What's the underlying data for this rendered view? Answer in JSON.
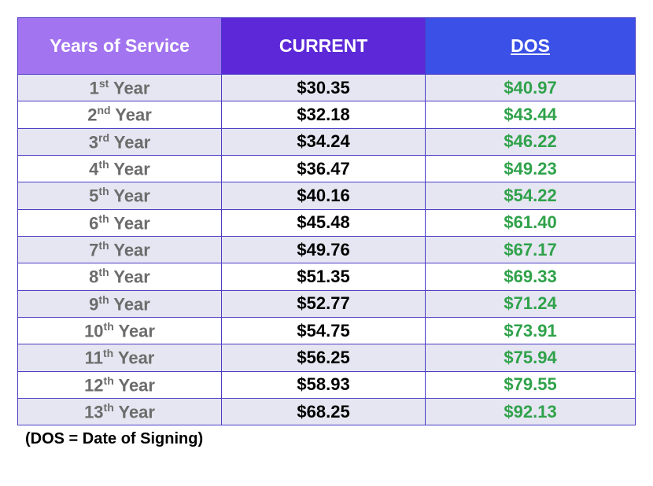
{
  "type": "table",
  "columns": {
    "years": {
      "label": "Years of Service",
      "header_bg": "#a374f0",
      "header_fg": "#ffffff",
      "cell_fg": "#6c6c6c"
    },
    "current": {
      "label": "CURRENT",
      "header_bg": "#5c28d8",
      "header_fg": "#ffffff",
      "cell_fg": "#000000"
    },
    "dos": {
      "label": "DOS",
      "header_bg": "#3b50e6",
      "header_fg": "#ffffff",
      "cell_fg": "#2fa24a",
      "underline": true
    }
  },
  "row_colors": {
    "odd": "#e6e6f2",
    "even": "#ffffff"
  },
  "border_color": "#4a3dc4",
  "header_fontsize": 23,
  "cell_fontsize": 22,
  "rows": [
    {
      "year_num": "1",
      "year_ord": "st",
      "year_suffix": " Year",
      "current": "$30.35",
      "dos": "$40.97"
    },
    {
      "year_num": "2",
      "year_ord": "nd",
      "year_suffix": " Year",
      "current": "$32.18",
      "dos": "$43.44"
    },
    {
      "year_num": "3",
      "year_ord": "rd",
      "year_suffix": " Year",
      "current": "$34.24",
      "dos": "$46.22"
    },
    {
      "year_num": "4",
      "year_ord": "th",
      "year_suffix": " Year",
      "current": "$36.47",
      "dos": "$49.23"
    },
    {
      "year_num": "5",
      "year_ord": "th",
      "year_suffix": " Year",
      "current": "$40.16",
      "dos": "$54.22"
    },
    {
      "year_num": "6",
      "year_ord": "th",
      "year_suffix": " Year",
      "current": "$45.48",
      "dos": "$61.40"
    },
    {
      "year_num": "7",
      "year_ord": "th",
      "year_suffix": " Year",
      "current": "$49.76",
      "dos": "$67.17"
    },
    {
      "year_num": "8",
      "year_ord": "th",
      "year_suffix": " Year",
      "current": "$51.35",
      "dos": "$69.33"
    },
    {
      "year_num": "9",
      "year_ord": "th",
      "year_suffix": " Year",
      "current": "$52.77",
      "dos": "$71.24"
    },
    {
      "year_num": "10",
      "year_ord": "th",
      "year_suffix": " Year",
      "current": "$54.75",
      "dos": "$73.91"
    },
    {
      "year_num": "11",
      "year_ord": "th",
      "year_suffix": " Year",
      "current": "$56.25",
      "dos": "$75.94"
    },
    {
      "year_num": "12",
      "year_ord": "th",
      "year_suffix": " Year",
      "current": "$58.93",
      "dos": "$79.55"
    },
    {
      "year_num": "13",
      "year_ord": "th",
      "year_suffix": " Year",
      "current": "$68.25",
      "dos": "$92.13"
    }
  ],
  "footnote": "(DOS = Date of Signing)"
}
